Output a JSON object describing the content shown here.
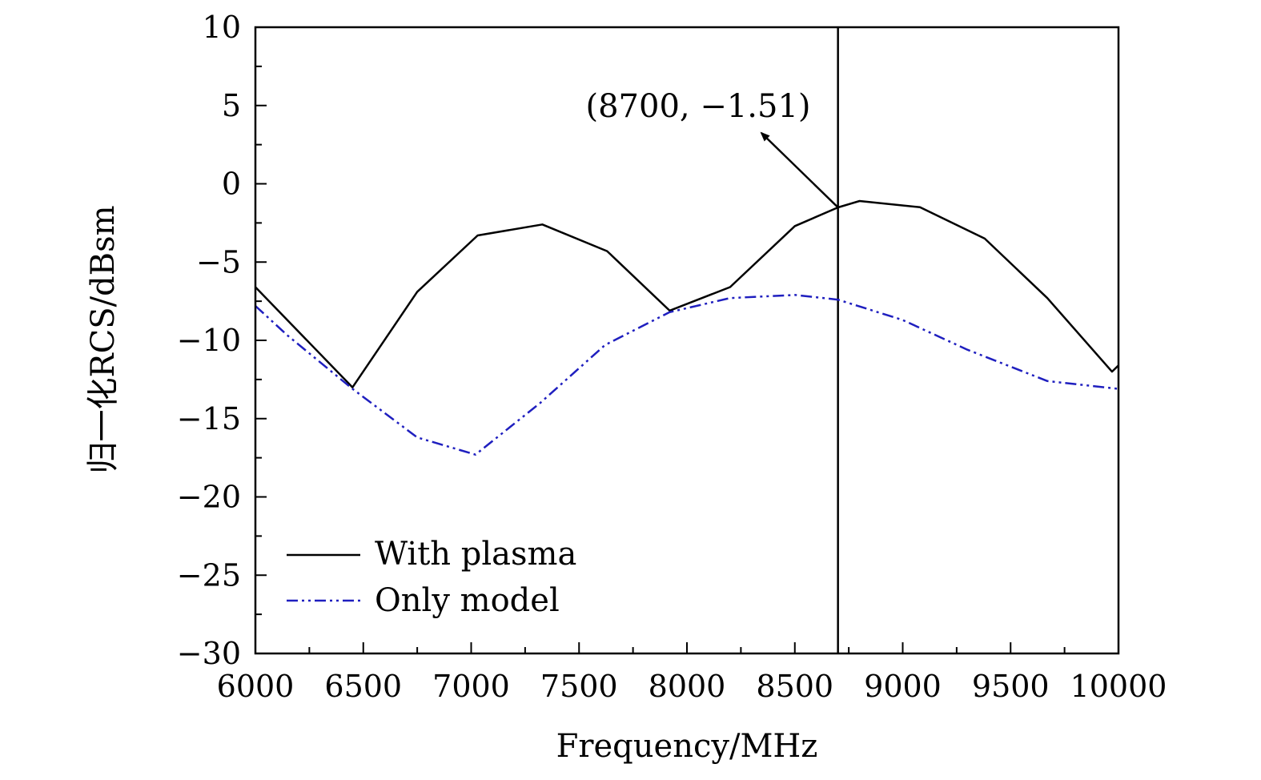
{
  "chart_data": {
    "type": "line",
    "title": "",
    "xlabel": "Frequency/MHz",
    "ylabel": "归一化RCS/dBsm",
    "xlim": [
      6000,
      10000
    ],
    "ylim": [
      -30,
      10
    ],
    "x_ticks": [
      6000,
      6500,
      7000,
      7500,
      8000,
      8500,
      9000,
      9500,
      10000
    ],
    "y_ticks": [
      10,
      5,
      0,
      -5,
      -10,
      -15,
      -20,
      -25,
      -30
    ],
    "x_tick_labels": [
      "6000",
      "6500",
      "7000",
      "7500",
      "8000",
      "8500",
      "9000",
      "9500",
      "10000"
    ],
    "y_tick_labels": [
      "10",
      "5",
      "0",
      "−5",
      "−10",
      "−15",
      "−20",
      "−25",
      "−30"
    ],
    "grid": false,
    "legend_position": "bottom-left",
    "series": [
      {
        "name": "With plasma",
        "color": "#000000",
        "style": "solid",
        "x": [
          6000,
          6450,
          6750,
          7030,
          7330,
          7630,
          7920,
          8200,
          8500,
          8700,
          8800,
          9080,
          9380,
          9670,
          9970,
          10000
        ],
        "y": [
          -6.6,
          -13.0,
          -6.9,
          -3.3,
          -2.6,
          -4.3,
          -8.1,
          -6.6,
          -2.7,
          -1.51,
          -1.1,
          -1.5,
          -3.5,
          -7.3,
          -12.0,
          -11.6
        ]
      },
      {
        "name": "Only model",
        "color": "#1f1fbf",
        "style": "dash-dot-dot",
        "x": [
          6000,
          6150,
          6450,
          6750,
          7020,
          7320,
          7620,
          7920,
          8200,
          8500,
          8700,
          9000,
          9300,
          9670,
          10000
        ],
        "y": [
          -7.8,
          -9.7,
          -13.1,
          -16.2,
          -17.3,
          -14.0,
          -10.3,
          -8.2,
          -7.3,
          -7.1,
          -7.4,
          -8.7,
          -10.6,
          -12.6,
          -13.1
        ]
      }
    ],
    "marker_line": {
      "x": 8700
    },
    "annotation": {
      "text": "(8700, −1.51)",
      "point": [
        8700,
        -1.51
      ]
    }
  }
}
